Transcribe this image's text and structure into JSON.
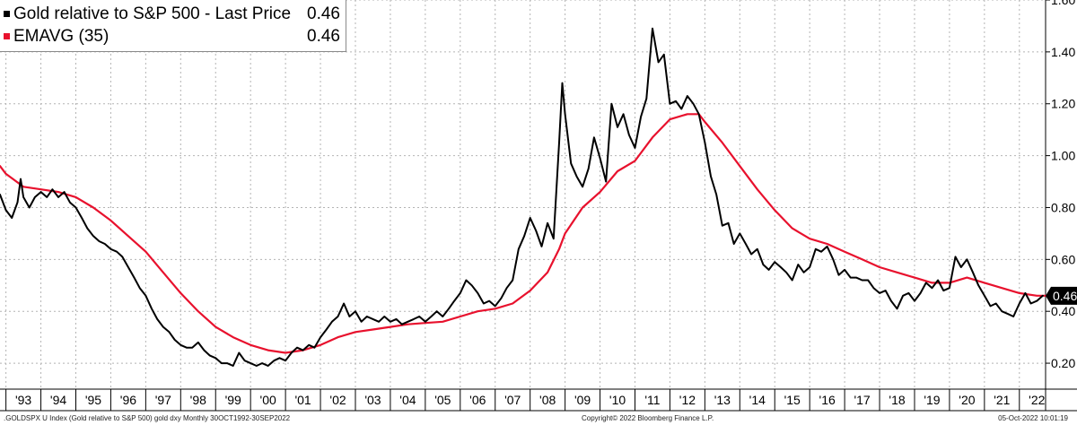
{
  "chart_data": {
    "type": "line",
    "ylim": [
      0.1,
      1.6
    ],
    "yticks": [
      0.2,
      0.4,
      0.6,
      0.8,
      1.0,
      1.2,
      1.4,
      1.6
    ],
    "ytick_labels": [
      "0.20",
      "0.40",
      "0.60",
      "0.80",
      "1.00",
      "1.20",
      "1.40",
      "1.60"
    ],
    "xlim": [
      1992.83,
      2022.75
    ],
    "x_tick_labels": [
      "'93",
      "'94",
      "'95",
      "'96",
      "'97",
      "'98",
      "'99",
      "'00",
      "'01",
      "'02",
      "'03",
      "'04",
      "'05",
      "'06",
      "'07",
      "'08",
      "'09",
      "'10",
      "'11",
      "'12",
      "'13",
      "'14",
      "'15",
      "'16",
      "'17",
      "'18",
      "'19",
      "'20",
      "'21",
      "'22"
    ],
    "grid": true,
    "legend_position": "top-left",
    "series": [
      {
        "name": "Gold relative to S&P 500 - Last Price",
        "last_value": "0.46",
        "color": "#000000",
        "points": [
          [
            1992.83,
            0.85
          ],
          [
            1993.0,
            0.79
          ],
          [
            1993.17,
            0.76
          ],
          [
            1993.33,
            0.82
          ],
          [
            1993.42,
            0.91
          ],
          [
            1993.5,
            0.84
          ],
          [
            1993.67,
            0.8
          ],
          [
            1993.83,
            0.84
          ],
          [
            1994.0,
            0.86
          ],
          [
            1994.17,
            0.84
          ],
          [
            1994.33,
            0.87
          ],
          [
            1994.5,
            0.84
          ],
          [
            1994.67,
            0.86
          ],
          [
            1994.83,
            0.82
          ],
          [
            1995.0,
            0.8
          ],
          [
            1995.17,
            0.76
          ],
          [
            1995.33,
            0.72
          ],
          [
            1995.5,
            0.69
          ],
          [
            1995.67,
            0.67
          ],
          [
            1995.83,
            0.66
          ],
          [
            1996.0,
            0.64
          ],
          [
            1996.17,
            0.63
          ],
          [
            1996.33,
            0.61
          ],
          [
            1996.5,
            0.57
          ],
          [
            1996.67,
            0.53
          ],
          [
            1996.83,
            0.49
          ],
          [
            1997.0,
            0.46
          ],
          [
            1997.17,
            0.41
          ],
          [
            1997.33,
            0.37
          ],
          [
            1997.5,
            0.34
          ],
          [
            1997.67,
            0.32
          ],
          [
            1997.83,
            0.29
          ],
          [
            1998.0,
            0.27
          ],
          [
            1998.17,
            0.26
          ],
          [
            1998.33,
            0.26
          ],
          [
            1998.5,
            0.28
          ],
          [
            1998.67,
            0.25
          ],
          [
            1998.83,
            0.23
          ],
          [
            1999.0,
            0.22
          ],
          [
            1999.17,
            0.2
          ],
          [
            1999.33,
            0.2
          ],
          [
            1999.5,
            0.19
          ],
          [
            1999.67,
            0.24
          ],
          [
            1999.83,
            0.21
          ],
          [
            2000.0,
            0.2
          ],
          [
            2000.17,
            0.19
          ],
          [
            2000.33,
            0.2
          ],
          [
            2000.5,
            0.19
          ],
          [
            2000.67,
            0.21
          ],
          [
            2000.83,
            0.22
          ],
          [
            2001.0,
            0.21
          ],
          [
            2001.17,
            0.24
          ],
          [
            2001.33,
            0.26
          ],
          [
            2001.5,
            0.25
          ],
          [
            2001.67,
            0.27
          ],
          [
            2001.83,
            0.26
          ],
          [
            2002.0,
            0.3
          ],
          [
            2002.17,
            0.33
          ],
          [
            2002.33,
            0.36
          ],
          [
            2002.5,
            0.38
          ],
          [
            2002.67,
            0.43
          ],
          [
            2002.83,
            0.38
          ],
          [
            2003.0,
            0.4
          ],
          [
            2003.17,
            0.36
          ],
          [
            2003.33,
            0.38
          ],
          [
            2003.5,
            0.37
          ],
          [
            2003.67,
            0.36
          ],
          [
            2003.83,
            0.38
          ],
          [
            2004.0,
            0.36
          ],
          [
            2004.17,
            0.37
          ],
          [
            2004.33,
            0.35
          ],
          [
            2004.5,
            0.36
          ],
          [
            2004.67,
            0.37
          ],
          [
            2004.83,
            0.38
          ],
          [
            2005.0,
            0.36
          ],
          [
            2005.17,
            0.38
          ],
          [
            2005.33,
            0.4
          ],
          [
            2005.5,
            0.38
          ],
          [
            2005.67,
            0.41
          ],
          [
            2005.83,
            0.44
          ],
          [
            2006.0,
            0.47
          ],
          [
            2006.17,
            0.52
          ],
          [
            2006.33,
            0.5
          ],
          [
            2006.5,
            0.47
          ],
          [
            2006.67,
            0.43
          ],
          [
            2006.83,
            0.44
          ],
          [
            2007.0,
            0.42
          ],
          [
            2007.17,
            0.45
          ],
          [
            2007.33,
            0.49
          ],
          [
            2007.5,
            0.52
          ],
          [
            2007.67,
            0.64
          ],
          [
            2007.83,
            0.69
          ],
          [
            2008.0,
            0.76
          ],
          [
            2008.17,
            0.71
          ],
          [
            2008.33,
            0.65
          ],
          [
            2008.5,
            0.74
          ],
          [
            2008.67,
            0.68
          ],
          [
            2008.83,
            1.05
          ],
          [
            2008.92,
            1.28
          ],
          [
            2009.0,
            1.16
          ],
          [
            2009.17,
            0.97
          ],
          [
            2009.33,
            0.92
          ],
          [
            2009.5,
            0.88
          ],
          [
            2009.67,
            0.95
          ],
          [
            2009.83,
            1.07
          ],
          [
            2010.0,
            0.99
          ],
          [
            2010.17,
            0.9
          ],
          [
            2010.33,
            1.2
          ],
          [
            2010.5,
            1.11
          ],
          [
            2010.67,
            1.16
          ],
          [
            2010.83,
            1.08
          ],
          [
            2011.0,
            1.03
          ],
          [
            2011.17,
            1.15
          ],
          [
            2011.33,
            1.22
          ],
          [
            2011.5,
            1.49
          ],
          [
            2011.67,
            1.36
          ],
          [
            2011.83,
            1.39
          ],
          [
            2012.0,
            1.2
          ],
          [
            2012.17,
            1.21
          ],
          [
            2012.33,
            1.18
          ],
          [
            2012.5,
            1.23
          ],
          [
            2012.67,
            1.2
          ],
          [
            2012.83,
            1.16
          ],
          [
            2013.0,
            1.05
          ],
          [
            2013.17,
            0.92
          ],
          [
            2013.33,
            0.85
          ],
          [
            2013.5,
            0.73
          ],
          [
            2013.67,
            0.74
          ],
          [
            2013.83,
            0.66
          ],
          [
            2014.0,
            0.7
          ],
          [
            2014.17,
            0.66
          ],
          [
            2014.33,
            0.62
          ],
          [
            2014.5,
            0.64
          ],
          [
            2014.67,
            0.58
          ],
          [
            2014.83,
            0.56
          ],
          [
            2015.0,
            0.59
          ],
          [
            2015.17,
            0.57
          ],
          [
            2015.33,
            0.55
          ],
          [
            2015.5,
            0.52
          ],
          [
            2015.67,
            0.58
          ],
          [
            2015.83,
            0.55
          ],
          [
            2016.0,
            0.57
          ],
          [
            2016.17,
            0.64
          ],
          [
            2016.33,
            0.63
          ],
          [
            2016.5,
            0.65
          ],
          [
            2016.67,
            0.6
          ],
          [
            2016.83,
            0.54
          ],
          [
            2017.0,
            0.56
          ],
          [
            2017.17,
            0.53
          ],
          [
            2017.33,
            0.53
          ],
          [
            2017.5,
            0.52
          ],
          [
            2017.67,
            0.52
          ],
          [
            2017.83,
            0.49
          ],
          [
            2018.0,
            0.47
          ],
          [
            2018.17,
            0.48
          ],
          [
            2018.33,
            0.44
          ],
          [
            2018.5,
            0.41
          ],
          [
            2018.67,
            0.46
          ],
          [
            2018.83,
            0.47
          ],
          [
            2019.0,
            0.44
          ],
          [
            2019.17,
            0.47
          ],
          [
            2019.33,
            0.51
          ],
          [
            2019.5,
            0.49
          ],
          [
            2019.67,
            0.52
          ],
          [
            2019.83,
            0.48
          ],
          [
            2020.0,
            0.49
          ],
          [
            2020.17,
            0.61
          ],
          [
            2020.33,
            0.57
          ],
          [
            2020.5,
            0.6
          ],
          [
            2020.67,
            0.55
          ],
          [
            2020.83,
            0.5
          ],
          [
            2021.0,
            0.46
          ],
          [
            2021.17,
            0.42
          ],
          [
            2021.33,
            0.43
          ],
          [
            2021.5,
            0.4
          ],
          [
            2021.67,
            0.39
          ],
          [
            2021.83,
            0.38
          ],
          [
            2022.0,
            0.43
          ],
          [
            2022.17,
            0.47
          ],
          [
            2022.33,
            0.43
          ],
          [
            2022.5,
            0.44
          ],
          [
            2022.67,
            0.46
          ]
        ]
      },
      {
        "name": "EMAVG (35)",
        "last_value": "0.46",
        "color": "#e8112d",
        "points": [
          [
            1992.83,
            0.96
          ],
          [
            1993.0,
            0.93
          ],
          [
            1993.5,
            0.88
          ],
          [
            1994.0,
            0.87
          ],
          [
            1994.5,
            0.86
          ],
          [
            1995.0,
            0.84
          ],
          [
            1995.5,
            0.8
          ],
          [
            1996.0,
            0.75
          ],
          [
            1996.5,
            0.69
          ],
          [
            1997.0,
            0.63
          ],
          [
            1997.5,
            0.55
          ],
          [
            1998.0,
            0.47
          ],
          [
            1998.5,
            0.4
          ],
          [
            1999.0,
            0.34
          ],
          [
            1999.5,
            0.3
          ],
          [
            2000.0,
            0.27
          ],
          [
            2000.5,
            0.25
          ],
          [
            2001.0,
            0.24
          ],
          [
            2001.5,
            0.25
          ],
          [
            2002.0,
            0.27
          ],
          [
            2002.5,
            0.3
          ],
          [
            2003.0,
            0.32
          ],
          [
            2003.5,
            0.33
          ],
          [
            2004.0,
            0.34
          ],
          [
            2004.5,
            0.35
          ],
          [
            2005.0,
            0.355
          ],
          [
            2005.5,
            0.36
          ],
          [
            2006.0,
            0.38
          ],
          [
            2006.5,
            0.4
          ],
          [
            2007.0,
            0.41
          ],
          [
            2007.5,
            0.43
          ],
          [
            2008.0,
            0.48
          ],
          [
            2008.5,
            0.55
          ],
          [
            2008.83,
            0.64
          ],
          [
            2009.0,
            0.7
          ],
          [
            2009.5,
            0.8
          ],
          [
            2010.0,
            0.86
          ],
          [
            2010.5,
            0.94
          ],
          [
            2011.0,
            0.98
          ],
          [
            2011.5,
            1.07
          ],
          [
            2012.0,
            1.14
          ],
          [
            2012.5,
            1.16
          ],
          [
            2012.83,
            1.16
          ],
          [
            2013.0,
            1.13
          ],
          [
            2013.5,
            1.05
          ],
          [
            2014.0,
            0.96
          ],
          [
            2014.5,
            0.87
          ],
          [
            2015.0,
            0.79
          ],
          [
            2015.5,
            0.72
          ],
          [
            2016.0,
            0.68
          ],
          [
            2016.5,
            0.66
          ],
          [
            2017.0,
            0.63
          ],
          [
            2017.5,
            0.6
          ],
          [
            2018.0,
            0.57
          ],
          [
            2018.5,
            0.55
          ],
          [
            2019.0,
            0.53
          ],
          [
            2019.5,
            0.51
          ],
          [
            2020.0,
            0.51
          ],
          [
            2020.5,
            0.53
          ],
          [
            2021.0,
            0.51
          ],
          [
            2021.5,
            0.49
          ],
          [
            2022.0,
            0.47
          ],
          [
            2022.5,
            0.46
          ],
          [
            2022.75,
            0.46
          ]
        ]
      }
    ]
  },
  "footer": {
    "left": ".GOLDSPX U Index (Gold relative to S&P 500) gold dxy  Monthly 30OCT1992-30SEP2022",
    "center": "Copyright© 2022 Bloomberg Finance L.P.",
    "right": "05-Oct-2022 10:01:19"
  }
}
